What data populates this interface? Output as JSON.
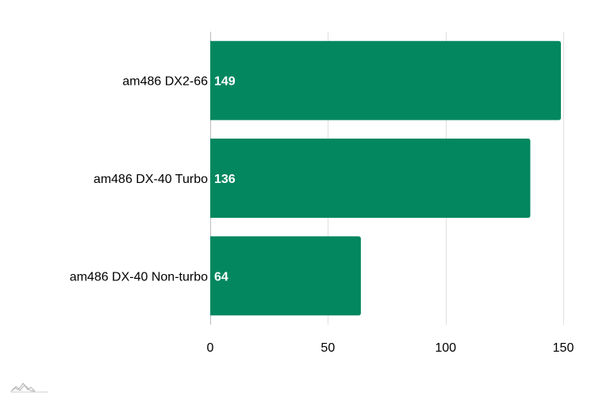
{
  "chart_data": {
    "type": "bar",
    "orientation": "horizontal",
    "categories": [
      "am486 DX2-66",
      "am486 DX-40 Turbo",
      "am486 DX-40 Non-turbo"
    ],
    "values": [
      149,
      136,
      64
    ],
    "xlim": [
      0,
      150
    ],
    "xticks": [
      0,
      50,
      100,
      150
    ],
    "grid": true,
    "data_labels": true,
    "bar_color": "#03875f",
    "title": "",
    "xlabel": "",
    "ylabel": ""
  },
  "branding": {
    "logo_icon": "amcharts-logo-icon"
  }
}
